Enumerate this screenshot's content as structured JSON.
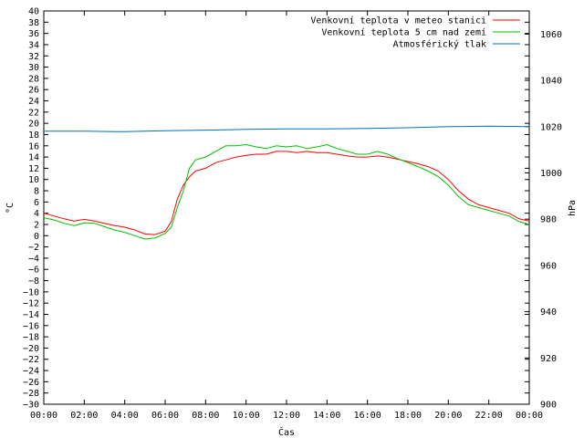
{
  "chart_data": {
    "type": "line",
    "xlabel": "Čas",
    "ylabel": "°C",
    "y2label": "hPa",
    "xlim": [
      0,
      24
    ],
    "ylim": [
      -30,
      40
    ],
    "y2lim": [
      900,
      1070
    ],
    "grid": false,
    "legend_position": "top-right",
    "x_ticks": [
      "00:00",
      "02:00",
      "04:00",
      "06:00",
      "08:00",
      "10:00",
      "12:00",
      "14:00",
      "16:00",
      "18:00",
      "20:00",
      "22:00",
      "00:00"
    ],
    "y_ticks": [
      40,
      38,
      36,
      34,
      32,
      30,
      28,
      26,
      24,
      22,
      20,
      18,
      16,
      14,
      12,
      10,
      8,
      6,
      4,
      2,
      0,
      -2,
      -4,
      -6,
      -8,
      -10,
      -12,
      -14,
      -16,
      -18,
      -20,
      -22,
      -24,
      -26,
      -28,
      -30
    ],
    "y2_ticks": [
      1060,
      1040,
      1020,
      1000,
      980,
      960,
      940,
      920,
      900
    ],
    "series": [
      {
        "name": "Venkovní teplota v meteo stanici",
        "color": "#ff0000",
        "axis": "y",
        "x": [
          0,
          0.5,
          1,
          1.5,
          2,
          2.5,
          3,
          3.5,
          4,
          4.5,
          5,
          5.5,
          6,
          6.3,
          6.6,
          6.9,
          7.2,
          7.5,
          8,
          8.5,
          9,
          9.5,
          10,
          10.5,
          11,
          11.5,
          12,
          12.5,
          13,
          13.5,
          14,
          14.5,
          15,
          15.5,
          16,
          16.5,
          17,
          17.5,
          18,
          18.5,
          19,
          19.5,
          20,
          20.5,
          21,
          21.5,
          22,
          22.5,
          23,
          23.5,
          24
        ],
        "values": [
          4.0,
          3.5,
          3.0,
          2.6,
          2.9,
          2.6,
          2.2,
          1.8,
          1.5,
          1.0,
          0.3,
          0.2,
          0.8,
          2.5,
          6.5,
          9.0,
          10.5,
          11.5,
          12.0,
          13.0,
          13.5,
          14.0,
          14.3,
          14.5,
          14.5,
          15.0,
          15.0,
          14.8,
          15.0,
          14.8,
          14.8,
          14.5,
          14.2,
          14.0,
          14.0,
          14.2,
          14.0,
          13.6,
          13.2,
          12.8,
          12.3,
          11.5,
          10.0,
          8.0,
          6.5,
          5.5,
          5.0,
          4.5,
          4.0,
          3.0,
          2.6
        ]
      },
      {
        "name": "Venkovní teplota 5 cm nad zemí",
        "color": "#00c000",
        "axis": "y",
        "x": [
          0,
          0.5,
          1,
          1.5,
          2,
          2.5,
          3,
          3.5,
          4,
          4.5,
          5,
          5.5,
          6,
          6.3,
          6.6,
          6.9,
          7.2,
          7.5,
          8,
          8.5,
          9,
          9.5,
          10,
          10.5,
          11,
          11.5,
          12,
          12.5,
          13,
          13.5,
          14,
          14.5,
          15,
          15.5,
          16,
          16.5,
          17,
          17.5,
          18,
          18.5,
          19,
          19.5,
          20,
          20.5,
          21,
          21.5,
          22,
          22.5,
          23,
          23.5,
          24
        ],
        "values": [
          3.2,
          2.8,
          2.2,
          1.8,
          2.3,
          2.2,
          1.6,
          1.0,
          0.6,
          0.0,
          -0.6,
          -0.4,
          0.4,
          1.5,
          5.0,
          8.0,
          12.0,
          13.5,
          14.0,
          15.0,
          16.0,
          16.0,
          16.2,
          15.8,
          15.5,
          16.0,
          15.8,
          16.0,
          15.5,
          15.8,
          16.2,
          15.5,
          15.0,
          14.5,
          14.5,
          15.0,
          14.5,
          13.7,
          13.0,
          12.3,
          11.5,
          10.5,
          9.0,
          7.0,
          5.5,
          5.0,
          4.5,
          4.0,
          3.5,
          2.5,
          2.0
        ]
      },
      {
        "name": "Atmosférický tlak",
        "color": "#0070c0",
        "axis": "y2",
        "x": [
          0,
          2,
          4,
          6,
          8,
          10,
          12,
          14,
          16,
          18,
          20,
          22,
          24
        ],
        "values": [
          1018.0,
          1018.0,
          1017.8,
          1018.2,
          1018.5,
          1018.8,
          1019.0,
          1019.0,
          1019.2,
          1019.5,
          1020.0,
          1020.2,
          1020.0
        ]
      }
    ]
  }
}
